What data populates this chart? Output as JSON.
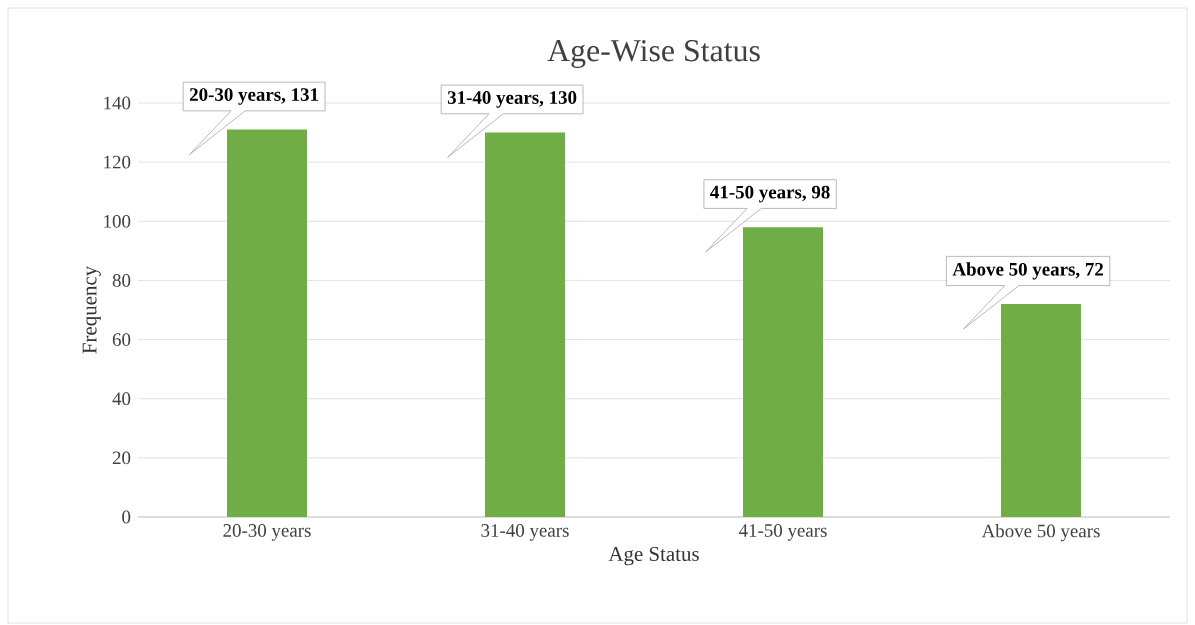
{
  "chart_data": {
    "type": "bar",
    "title": "Age-Wise Status",
    "xlabel": "Age Status",
    "ylabel": "Frequency",
    "categories": [
      "20-30 years",
      "31-40 years",
      "41-50 years",
      "Above 50 years"
    ],
    "values": [
      131,
      130,
      98,
      72
    ],
    "value_labels": [
      "20-30 years, 131",
      "31-40 years, 130",
      "41-50 years, 98",
      "Above 50 years, 72"
    ],
    "color": "#70ad47",
    "ylim": [
      0,
      140
    ],
    "yticks": [
      0,
      20,
      40,
      60,
      80,
      100,
      120,
      140
    ],
    "grid": "y"
  }
}
